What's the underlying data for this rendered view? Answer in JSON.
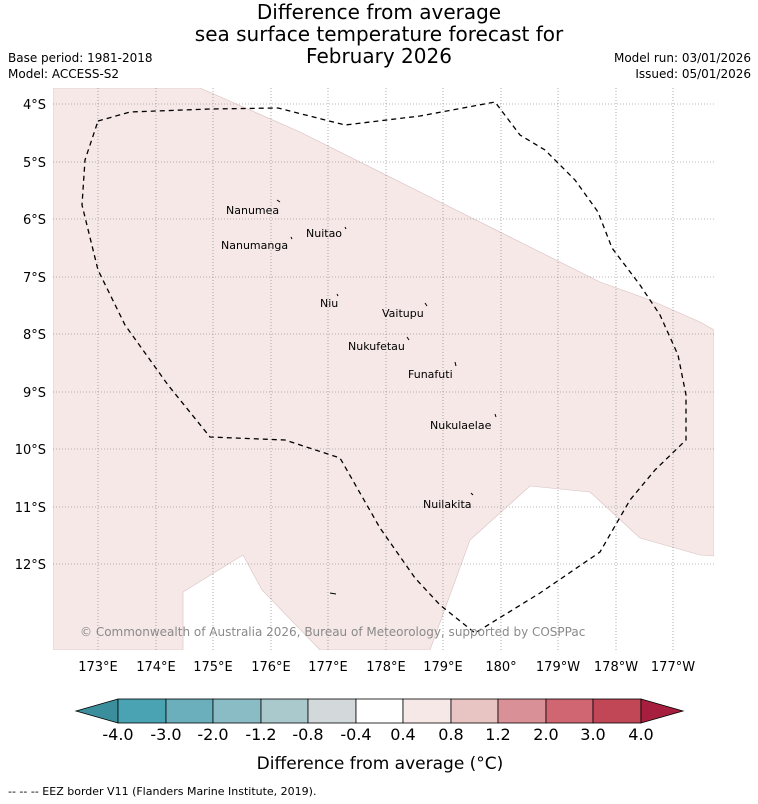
{
  "title": {
    "line1": "Difference from average",
    "line2": "sea surface temperature forecast for",
    "line3": "February 2026"
  },
  "meta": {
    "base_period": "Base period: 1981-2018",
    "model": "Model: ACCESS-S2",
    "model_run": "Model run: 03/01/2026",
    "issued": "Issued: 05/01/2026"
  },
  "map": {
    "latitude_labels": [
      "4°S",
      "5°S",
      "6°S",
      "7°S",
      "8°S",
      "9°S",
      "10°S",
      "11°S",
      "12°S"
    ],
    "longitude_labels": [
      "173°E",
      "174°E",
      "175°E",
      "176°E",
      "177°E",
      "178°E",
      "179°E",
      "180°",
      "179°W",
      "178°W",
      "177°W"
    ],
    "islands": [
      "Nanumea",
      "Nuitao",
      "Nanumanga",
      "Niu",
      "Vaitupu",
      "Nukufetau",
      "Funafuti",
      "Nukulaelae",
      "Nuilakita"
    ],
    "copyright": "© Commonwealth of Australia 2026, Bureau of Meteorology, supported by COSPPac",
    "anomaly_fill_color": "#f5e8e7",
    "eez_line_color": "#000000"
  },
  "colorbar": {
    "ticks": [
      "-4.0",
      "-3.0",
      "-2.0",
      "-1.2",
      "-0.8",
      "-0.4",
      "0.4",
      "0.8",
      "1.2",
      "2.0",
      "3.0",
      "4.0"
    ],
    "colors": [
      "#3b8f9d",
      "#4aa3b3",
      "#6aafbb",
      "#8abcc5",
      "#a9c9cc",
      "#d3d9da",
      "#ffffff",
      "#f6e8e7",
      "#e8c5c2",
      "#d99097",
      "#cf6671",
      "#c24756",
      "#a71f3e"
    ],
    "label": "Difference from average (°C)"
  },
  "footer": {
    "legend_line": "--  --  -- EEZ border V11 (Flanders Marine Institute, 2019)."
  }
}
